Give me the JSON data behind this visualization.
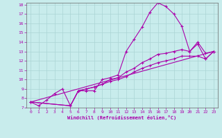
{
  "xlabel": "Windchill (Refroidissement éolien,°C)",
  "bg_color": "#c8ecec",
  "grid_color": "#aad4d4",
  "line_color": "#aa00aa",
  "xlim": [
    -0.5,
    23.5
  ],
  "ylim": [
    7,
    18.2
  ],
  "xticks": [
    0,
    1,
    2,
    3,
    4,
    5,
    6,
    7,
    8,
    9,
    10,
    11,
    12,
    13,
    14,
    15,
    16,
    17,
    18,
    19,
    20,
    21,
    22,
    23
  ],
  "yticks": [
    7,
    8,
    9,
    10,
    11,
    12,
    13,
    14,
    15,
    16,
    17,
    18
  ],
  "line1_x": [
    0,
    1,
    2,
    3,
    4,
    5,
    6,
    7,
    8,
    9,
    10,
    11,
    12,
    13,
    14,
    15,
    16,
    17,
    18,
    19,
    20,
    21,
    22,
    23
  ],
  "line1_y": [
    7.6,
    7.2,
    7.8,
    8.5,
    9.0,
    7.2,
    8.8,
    8.8,
    8.8,
    10.0,
    10.2,
    10.5,
    13.0,
    14.3,
    15.6,
    17.2,
    18.2,
    17.8,
    17.0,
    15.7,
    13.0,
    14.0,
    12.8,
    13.0
  ],
  "line2_x": [
    0,
    5,
    6,
    7,
    8,
    9,
    10,
    11,
    12,
    13,
    14,
    15,
    16,
    17,
    18,
    19,
    20,
    21,
    22,
    23
  ],
  "line2_y": [
    7.6,
    7.2,
    8.8,
    9.0,
    9.2,
    9.5,
    10.0,
    10.2,
    10.8,
    11.2,
    11.8,
    12.2,
    12.7,
    12.8,
    13.0,
    13.2,
    13.0,
    13.8,
    12.2,
    13.0
  ],
  "line3_x": [
    0,
    5,
    6,
    7,
    8,
    9,
    10,
    11,
    12,
    13,
    14,
    15,
    16,
    17,
    18,
    19,
    20,
    21,
    22,
    23
  ],
  "line3_y": [
    7.6,
    7.2,
    8.8,
    9.0,
    9.2,
    9.5,
    9.8,
    10.0,
    10.3,
    10.8,
    11.2,
    11.5,
    11.8,
    12.0,
    12.2,
    12.5,
    12.5,
    12.5,
    12.2,
    13.0
  ],
  "line4_x": [
    0,
    23
  ],
  "line4_y": [
    7.6,
    13.0
  ]
}
